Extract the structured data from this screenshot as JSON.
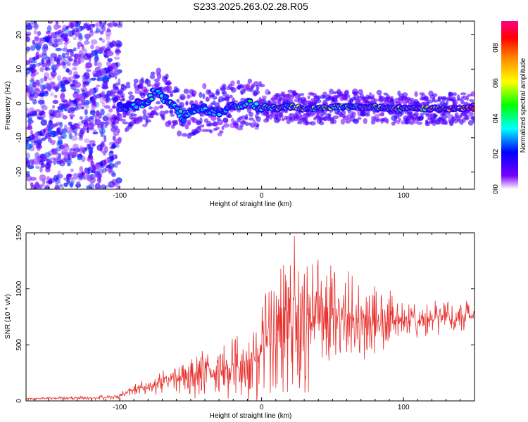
{
  "title": "S233.2025.263.02.28.R05",
  "chart_data": [
    {
      "type": "heatmap",
      "title": "S233.2025.263.02.28.R05",
      "xlabel": "Height of straight line (km)",
      "ylabel": "Frequency (Hz)",
      "xlim": [
        -166,
        150
      ],
      "ylim": [
        -25,
        24
      ],
      "xticks": [
        -100,
        0,
        100
      ],
      "xtick_labels": [
        "-100",
        "0",
        "100"
      ],
      "yticks": [
        -20,
        -10,
        0,
        10,
        20
      ],
      "ytick_labels": [
        "-20",
        "-10",
        "0",
        "10",
        "20"
      ],
      "ridge": {
        "x": [
          -100,
          -90,
          -80,
          -75,
          -70,
          -60,
          -55,
          -50,
          -40,
          -30,
          -20,
          -10,
          0,
          10,
          20,
          30,
          40,
          50,
          60,
          70,
          80,
          90,
          100,
          110,
          120,
          130,
          140,
          150
        ],
        "freq": [
          -1,
          -0.5,
          0.5,
          4,
          2,
          -2,
          -4,
          -2,
          -1.5,
          -2.5,
          -1,
          0,
          -1,
          -1.3,
          -0.8,
          -1.5,
          -1.5,
          -1,
          -1,
          -1,
          -1,
          -1.5,
          -1.5,
          -1.5,
          -1.5,
          -1.5,
          -1.5,
          -1.5
        ],
        "amplitude": [
          0.3,
          0.35,
          0.4,
          0.45,
          0.4,
          0.45,
          0.4,
          0.35,
          0.35,
          0.35,
          0.4,
          0.5,
          0.55,
          0.6,
          0.6,
          0.65,
          0.65,
          0.6,
          0.6,
          0.65,
          0.7,
          0.7,
          0.75,
          0.75,
          0.8,
          0.85,
          0.9,
          0.9
        ]
      },
      "colorbar": {
        "label": "Normalized spectral amplitude",
        "range": [
          0,
          0.95
        ],
        "ticks": [
          0.0,
          0.2,
          0.4,
          0.6,
          0.8
        ],
        "tick_labels": [
          "0.0",
          "0.2",
          "0.4",
          "0.6",
          "0.8"
        ],
        "colors": [
          "#ffffff",
          "#7700ff",
          "#0000ff",
          "#00ffff",
          "#00ff00",
          "#ffff00",
          "#ff8800",
          "#ff0000",
          "#ff0088"
        ]
      }
    },
    {
      "type": "line",
      "xlabel": "Height of straight line (km)",
      "ylabel": "SNR (10 * v/v)",
      "xlim": [
        -166,
        150
      ],
      "ylim": [
        0,
        1500
      ],
      "xticks": [
        -100,
        0,
        100
      ],
      "xtick_labels": [
        "-100",
        "0",
        "100"
      ],
      "yticks": [
        0,
        500,
        1000,
        1500
      ],
      "ytick_labels": [
        "0",
        "500",
        "1000",
        "1500"
      ],
      "series": [
        {
          "name": "SNR",
          "color": "#e8302d",
          "x": [
            -166,
            -140,
            -120,
            -100,
            -90,
            -80,
            -70,
            -60,
            -50,
            -40,
            -30,
            -20,
            -10,
            0,
            10,
            20,
            25,
            30,
            40,
            50,
            60,
            70,
            80,
            90,
            100,
            110,
            120,
            130,
            140,
            150
          ],
          "values": [
            20,
            25,
            25,
            40,
            100,
            120,
            170,
            200,
            200,
            260,
            260,
            290,
            340,
            480,
            620,
            750,
            900,
            700,
            700,
            740,
            740,
            720,
            720,
            720,
            720,
            720,
            740,
            740,
            740,
            770
          ],
          "amplitude": [
            10,
            10,
            15,
            20,
            40,
            60,
            80,
            100,
            130,
            160,
            180,
            200,
            280,
            350,
            450,
            560,
            560,
            480,
            420,
            380,
            330,
            300,
            250,
            200,
            160,
            140,
            120,
            120,
            110,
            100
          ]
        }
      ]
    }
  ]
}
